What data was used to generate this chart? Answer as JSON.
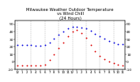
{
  "title": "Milwaukee Weather Outdoor Temperature\nvs Wind Chill\n(24 Hours)",
  "title_fontsize": 3.8,
  "background_color": "#ffffff",
  "grid_color": "#888888",
  "hours": [
    0,
    1,
    2,
    3,
    4,
    5,
    6,
    7,
    8,
    9,
    10,
    11,
    12,
    13,
    14,
    15,
    16,
    17,
    18,
    19,
    20,
    21,
    22,
    23
  ],
  "temp": [
    22,
    22,
    22,
    22,
    21,
    21,
    22,
    26,
    31,
    36,
    40,
    44,
    47,
    47,
    46,
    44,
    41,
    37,
    34,
    31,
    28,
    26,
    24,
    23
  ],
  "windchill": [
    -5,
    -5,
    -5,
    -5,
    -5,
    -5,
    -4,
    2,
    10,
    18,
    26,
    34,
    40,
    42,
    38,
    32,
    22,
    14,
    8,
    4,
    0,
    -2,
    -4,
    -5
  ],
  "temp_color": "#0000dd",
  "windchill_color": "#dd0000",
  "marker_size": 1.8,
  "ylim": [
    -10,
    55
  ],
  "yticks": [
    -10,
    0,
    10,
    20,
    30,
    40,
    50
  ],
  "ytick_fontsize": 3.2,
  "xtick_fontsize": 2.8,
  "xtick_labels": [
    "12",
    "1",
    "2",
    "3",
    "4",
    "5",
    "6",
    "7",
    "8",
    "9",
    "10",
    "11",
    "12",
    "1",
    "2",
    "3",
    "4",
    "5",
    "6",
    "7",
    "8",
    "9",
    "10",
    "11"
  ],
  "vgrid_positions": [
    0,
    3,
    6,
    9,
    12,
    15,
    18,
    21
  ],
  "right_yticks": [
    -10,
    0,
    10,
    20,
    30,
    40,
    50
  ],
  "right_yticklabels": [
    "-10",
    "0",
    "10",
    "20",
    "30",
    "40",
    "50"
  ]
}
